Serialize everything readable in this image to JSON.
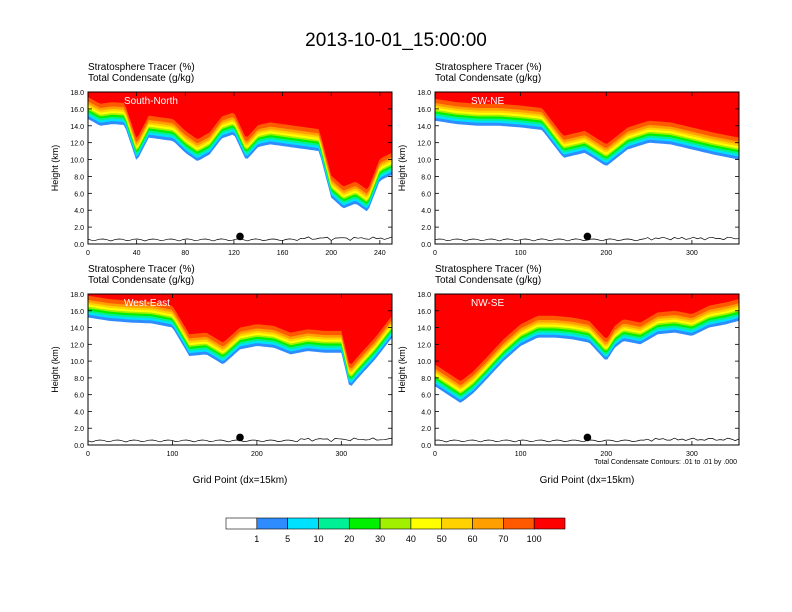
{
  "figure_title": "2013-10-01_15:00:00",
  "footnote": "Total Condensate Contours: .01 to .01 by .000",
  "colors": {
    "background": "#ffffff",
    "contour_line": "#000000",
    "levels": [
      "#ffffff",
      "#2e8cff",
      "#00e1ff",
      "#00f096",
      "#00f000",
      "#a0f000",
      "#ffff00",
      "#ffd200",
      "#ffa000",
      "#ff5a00",
      "#ff0000"
    ]
  },
  "colorbar": {
    "labels": [
      "1",
      "5",
      "10",
      "20",
      "30",
      "40",
      "50",
      "60",
      "70",
      "100"
    ]
  },
  "panels": [
    {
      "line1": "Stratosphere Tracer   (%)",
      "line2": "Total Condensate   (g/kg)",
      "label": "South-North",
      "ylabel": "Height (km)",
      "xlabel": "",
      "xmax": 250,
      "xticks": [
        "0",
        "40",
        "80",
        "120",
        "160",
        "200",
        "240"
      ],
      "yticks": [
        "0.0",
        "2.0",
        "4.0",
        "6.0",
        "8.0",
        "10.0",
        "12.0",
        "14.0",
        "16.0",
        "18.0"
      ],
      "marker_x": 125
    },
    {
      "line1": "Stratosphere Tracer   (%)",
      "line2": "Total Condensate   (g/kg)",
      "label": "SW-NE",
      "ylabel": "Height (km)",
      "xlabel": "",
      "xmax": 355,
      "xticks": [
        "0",
        "100",
        "200",
        "300"
      ],
      "yticks": [
        "0.0",
        "2.0",
        "4.0",
        "6.0",
        "8.0",
        "10.0",
        "12.0",
        "14.0",
        "16.0",
        "18.0"
      ],
      "marker_x": 178
    },
    {
      "line1": "Stratosphere Tracer   (%)",
      "line2": "Total Condensate   (g/kg)",
      "label": "West-East",
      "ylabel": "Height (km)",
      "xlabel": "Grid Point (dx=15km)",
      "xmax": 360,
      "xticks": [
        "0",
        "100",
        "200",
        "300"
      ],
      "yticks": [
        "0.0",
        "2.0",
        "4.0",
        "6.0",
        "8.0",
        "10.0",
        "12.0",
        "14.0",
        "16.0",
        "18.0"
      ],
      "marker_x": 180
    },
    {
      "line1": "Stratosphere Tracer   (%)",
      "line2": "Total Condensate   (g/kg)",
      "label": "NW-SE",
      "ylabel": "Height (km)",
      "xlabel": "Grid Point (dx=15km)",
      "xmax": 355,
      "xticks": [
        "0",
        "100",
        "200",
        "300"
      ],
      "yticks": [
        "0.0",
        "2.0",
        "4.0",
        "6.0",
        "8.0",
        "10.0",
        "12.0",
        "14.0",
        "16.0",
        "18.0"
      ],
      "marker_x": 178
    }
  ],
  "chart_data": [
    {
      "type": "heatmap",
      "title": "South-North",
      "xlabel": "",
      "ylabel": "Height (km)",
      "xlim": [
        0,
        250
      ],
      "ylim": [
        0,
        18
      ],
      "levels": [
        1,
        5,
        10,
        20,
        30,
        40,
        50,
        60,
        70,
        100
      ],
      "tracer_1pct_height_km": {
        "x": [
          0,
          10,
          20,
          30,
          40,
          50,
          60,
          70,
          80,
          90,
          100,
          110,
          120,
          130,
          140,
          150,
          160,
          170,
          180,
          190,
          200,
          210,
          220,
          230,
          240,
          250
        ],
        "y": [
          14.8,
          14.0,
          14.2,
          14.1,
          9.8,
          12.6,
          12.4,
          12.2,
          10.8,
          9.8,
          10.6,
          12.5,
          13.0,
          9.9,
          11.5,
          11.8,
          11.6,
          11.4,
          11.2,
          11.0,
          5.5,
          4.2,
          4.8,
          3.8,
          7.5,
          8.2
        ]
      }
    },
    {
      "type": "heatmap",
      "title": "SW-NE",
      "xlabel": "",
      "ylabel": "Height (km)",
      "xlim": [
        0,
        355
      ],
      "ylim": [
        0,
        18
      ],
      "levels": [
        1,
        5,
        10,
        20,
        30,
        40,
        50,
        60,
        70,
        100
      ],
      "tracer_1pct_height_km": {
        "x": [
          0,
          25,
          50,
          75,
          100,
          125,
          150,
          175,
          200,
          225,
          250,
          275,
          300,
          325,
          355
        ],
        "y": [
          14.6,
          14.2,
          14.0,
          14.0,
          13.8,
          13.5,
          10.2,
          10.8,
          9.2,
          11.2,
          12.0,
          11.8,
          11.2,
          10.6,
          10.0
        ]
      }
    },
    {
      "type": "heatmap",
      "title": "West-East",
      "xlabel": "Grid Point (dx=15km)",
      "ylabel": "Height (km)",
      "xlim": [
        0,
        360
      ],
      "ylim": [
        0,
        18
      ],
      "levels": [
        1,
        5,
        10,
        20,
        30,
        40,
        50,
        60,
        70,
        100
      ],
      "tracer_1pct_height_km": {
        "x": [
          0,
          25,
          50,
          75,
          100,
          120,
          140,
          160,
          180,
          200,
          220,
          240,
          260,
          280,
          300,
          310,
          320,
          340,
          360
        ],
        "y": [
          15.2,
          14.8,
          14.6,
          14.5,
          14.0,
          10.6,
          10.8,
          9.6,
          11.4,
          11.8,
          11.6,
          10.8,
          11.2,
          11.0,
          11.0,
          6.8,
          8.0,
          10.2,
          12.8
        ]
      }
    },
    {
      "type": "heatmap",
      "title": "NW-SE",
      "xlabel": "Grid Point (dx=15km)",
      "ylabel": "Height (km)",
      "xlim": [
        0,
        355
      ],
      "ylim": [
        0,
        18
      ],
      "levels": [
        1,
        5,
        10,
        20,
        30,
        40,
        50,
        60,
        70,
        100
      ],
      "tracer_1pct_height_km": {
        "x": [
          0,
          15,
          30,
          45,
          60,
          80,
          100,
          120,
          140,
          160,
          180,
          200,
          210,
          220,
          240,
          260,
          280,
          300,
          320,
          340,
          355
        ],
        "y": [
          7.0,
          6.0,
          5.0,
          6.2,
          7.8,
          10.0,
          11.8,
          12.8,
          12.8,
          12.6,
          12.2,
          10.0,
          11.6,
          12.4,
          12.0,
          13.2,
          13.4,
          13.0,
          14.0,
          14.4,
          14.8
        ]
      }
    }
  ]
}
